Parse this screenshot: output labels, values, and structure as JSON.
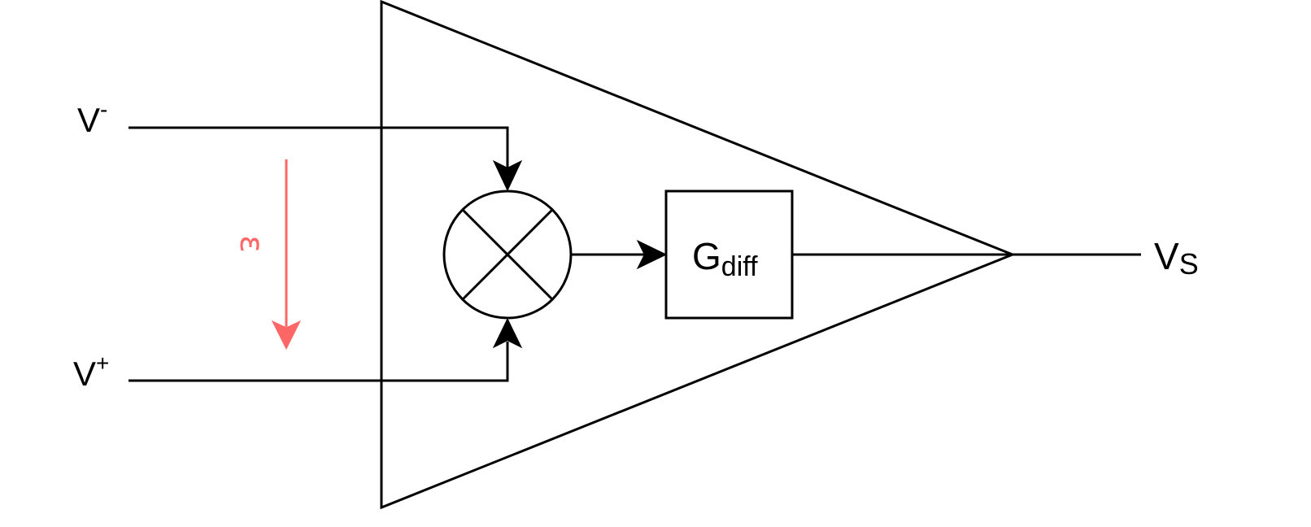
{
  "inputs": {
    "v_minus": {
      "base": "V",
      "sup": "-"
    },
    "v_plus": {
      "base": "V",
      "sup": "+"
    }
  },
  "error": {
    "symbol": "ε",
    "color": "#FF6666"
  },
  "gain_block": {
    "base": "G",
    "sub": "diff"
  },
  "output": {
    "base": "V",
    "sub": "S"
  },
  "mixer_icon": "summing-junction-x-icon"
}
